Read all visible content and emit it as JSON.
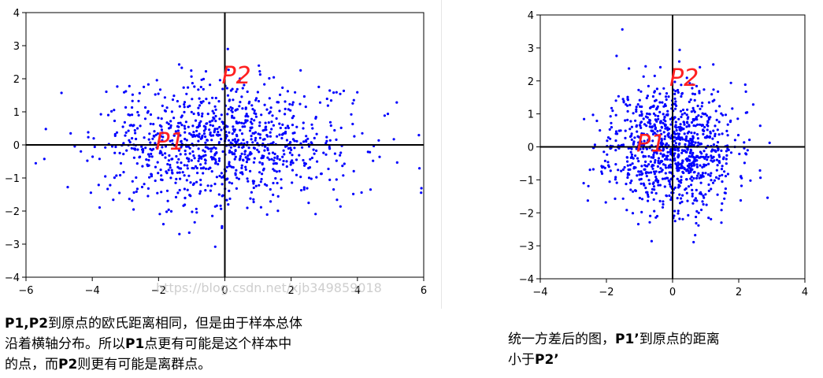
{
  "colors": {
    "points": "#0000ff",
    "axes": "#000000",
    "annotation": "#ff2020"
  },
  "watermark": "https://blog.csdn.net/xjb349859018",
  "chart_data": [
    {
      "type": "scatter",
      "xlim": [
        -6,
        6
      ],
      "ylim": [
        -4,
        4
      ],
      "xticks": [
        "−6",
        "−4",
        "−2",
        "0",
        "2",
        "4",
        "6"
      ],
      "yticks": [
        "−4",
        "−3",
        "−2",
        "−1",
        "0",
        "1",
        "2",
        "3",
        "4"
      ],
      "x_distribution": {
        "mean": 0,
        "std": 1.9
      },
      "y_distribution": {
        "mean": 0,
        "std": 0.95
      },
      "n_points": 1000,
      "annotations": [
        {
          "text": "P1",
          "x": -2.0,
          "y": 0.0
        },
        {
          "text": "P2",
          "x": 0.0,
          "y": 2.0
        }
      ],
      "reference_lines": {
        "x": 0,
        "y": 0
      },
      "grid": false,
      "caption": [
        {
          "b": "P1,P2",
          "t": "到原点的欧氏距离相同，但是由于样本总体"
        },
        {
          "t": "沿着横轴分布。所以"
        },
        {
          "b": "P1",
          "t": "点更有可能是这个样本中"
        },
        {
          "t": "的点，而"
        },
        {
          "b": "P2",
          "t": "则更有可能是离群点。"
        }
      ]
    },
    {
      "type": "scatter",
      "xlim": [
        -4,
        4
      ],
      "ylim": [
        -4,
        4
      ],
      "xticks": [
        "−4",
        "−2",
        "0",
        "2",
        "4"
      ],
      "yticks": [
        "−4",
        "−3",
        "−2",
        "−1",
        "0",
        "1",
        "2",
        "3",
        "4"
      ],
      "x_distribution": {
        "mean": 0,
        "std": 0.95
      },
      "y_distribution": {
        "mean": 0,
        "std": 0.95
      },
      "n_points": 1000,
      "annotations": [
        {
          "text": "P1",
          "x": -1.0,
          "y": 0.0
        },
        {
          "text": "P2",
          "x": 0.0,
          "y": 2.0
        }
      ],
      "reference_lines": {
        "x": 0,
        "y": 0
      },
      "grid": false,
      "caption": [
        {
          "t": "统一方差后的图，"
        },
        {
          "b": "P1’",
          "t": "到原点的距离"
        },
        {
          "t": "小于"
        },
        {
          "b": "P2’"
        }
      ]
    }
  ]
}
